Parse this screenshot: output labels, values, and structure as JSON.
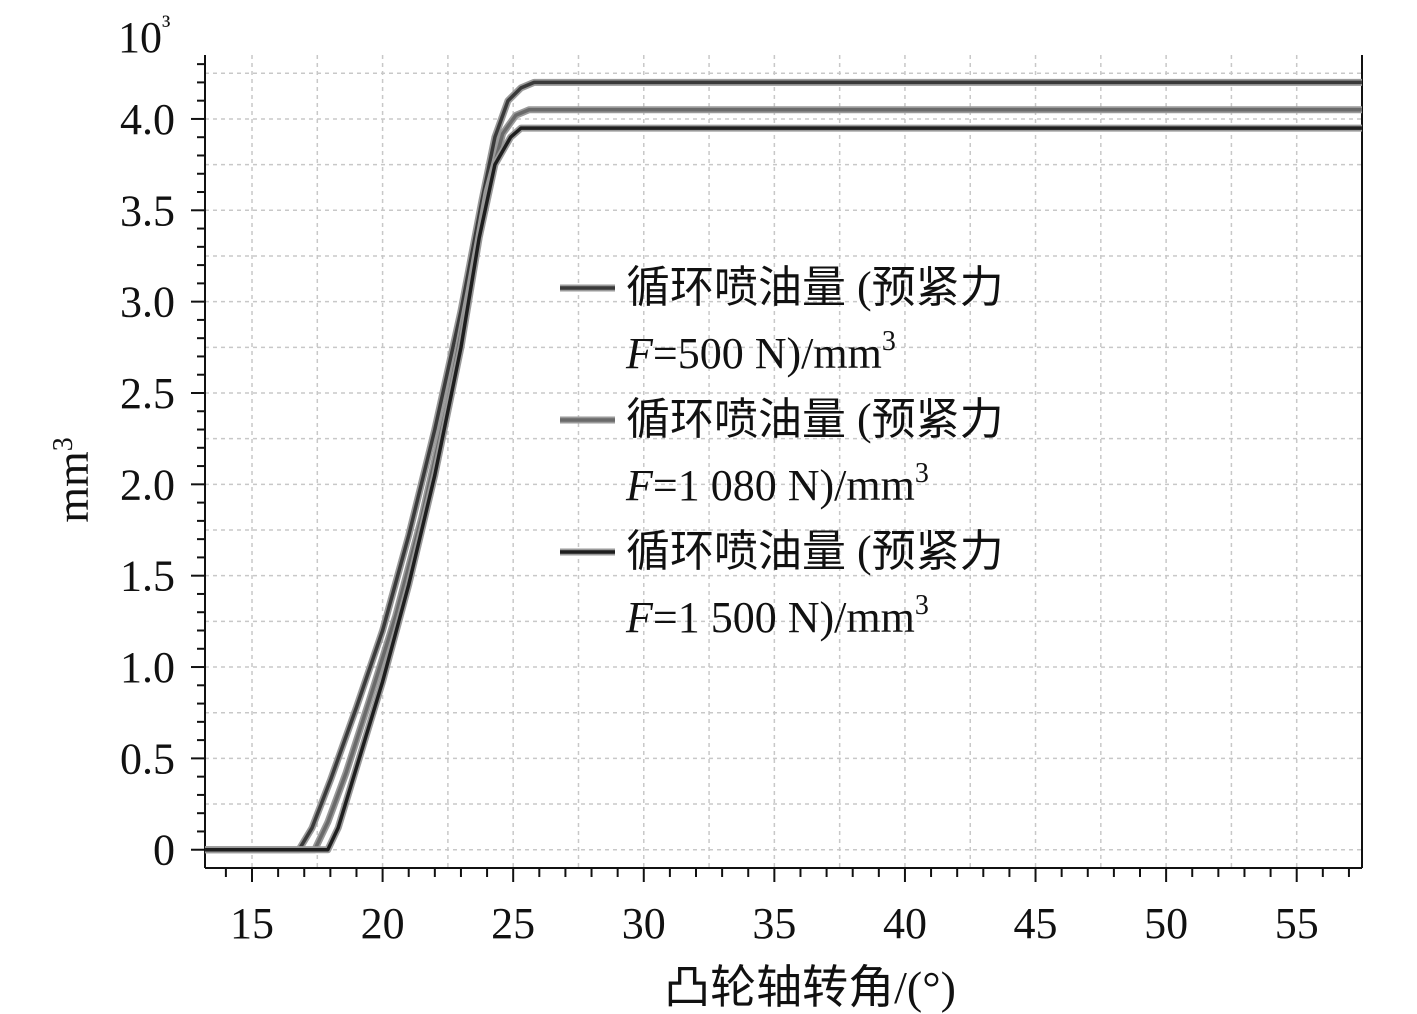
{
  "chart_data": {
    "type": "line",
    "title": "",
    "xlabel": "凸轮轴转角/(°)",
    "ylabel": "mm³",
    "y_multiplier": "10³",
    "xlim": [
      13.2,
      57.5
    ],
    "ylim": [
      -0.1,
      4.35
    ],
    "xticks": [
      15,
      20,
      25,
      30,
      35,
      40,
      45,
      50,
      55
    ],
    "xtick_labels": [
      "15",
      "20",
      "25",
      "30",
      "35",
      "40",
      "45",
      "50",
      "55"
    ],
    "yticks": [
      0,
      0.5,
      1.0,
      1.5,
      2.0,
      2.5,
      3.0,
      3.5,
      4.0
    ],
    "ytick_labels": [
      "0",
      "0.5",
      "1.0",
      "1.5",
      "2.0",
      "2.5",
      "3.0",
      "3.5",
      "4.0"
    ],
    "grid": true,
    "legend_position": "center-right",
    "series": [
      {
        "name": "循环喷油量 (预紧力 F=500 N)/mm³",
        "legend_line1": "循环喷油量 (预紧力",
        "legend_line2_italic": "F",
        "legend_line2_rest": "=500 N)/mm",
        "legend_sup": "3",
        "color": "#3a3a3a",
        "x": [
          13.2,
          16.8,
          17.3,
          18.0,
          19.0,
          20.0,
          21.0,
          22.0,
          23.0,
          23.8,
          24.3,
          24.8,
          25.3,
          25.8,
          57.5
        ],
        "values": [
          0,
          0,
          0.12,
          0.38,
          0.78,
          1.2,
          1.72,
          2.3,
          2.95,
          3.55,
          3.9,
          4.1,
          4.17,
          4.2,
          4.2
        ]
      },
      {
        "name": "循环喷油量 (预紧力 F=1 080 N)/mm³",
        "legend_line1": "循环喷油量 (预紧力",
        "legend_line2_italic": "F",
        "legend_line2_rest": "=1 080 N)/mm",
        "legend_sup": "3",
        "color": "#6a6a6a",
        "x": [
          13.2,
          17.4,
          17.9,
          18.6,
          19.5,
          20.5,
          21.5,
          22.5,
          23.3,
          24.0,
          24.6,
          25.1,
          25.6,
          57.5
        ],
        "values": [
          0,
          0,
          0.15,
          0.42,
          0.82,
          1.28,
          1.82,
          2.45,
          3.05,
          3.6,
          3.92,
          4.02,
          4.05,
          4.05
        ]
      },
      {
        "name": "循环喷油量 (预紧力 F=1 500 N)/mm³",
        "legend_line1": "循环喷油量 (预紧力",
        "legend_line2_italic": "F",
        "legend_line2_rest": "=1 500 N)/mm",
        "legend_sup": "3",
        "color": "#1e1e1e",
        "x": [
          13.2,
          17.9,
          18.3,
          19.0,
          20.0,
          21.0,
          22.0,
          23.0,
          23.7,
          24.3,
          24.9,
          25.3,
          57.5
        ],
        "values": [
          0,
          0,
          0.12,
          0.45,
          0.92,
          1.45,
          2.05,
          2.75,
          3.35,
          3.75,
          3.9,
          3.95,
          3.95
        ]
      }
    ]
  }
}
